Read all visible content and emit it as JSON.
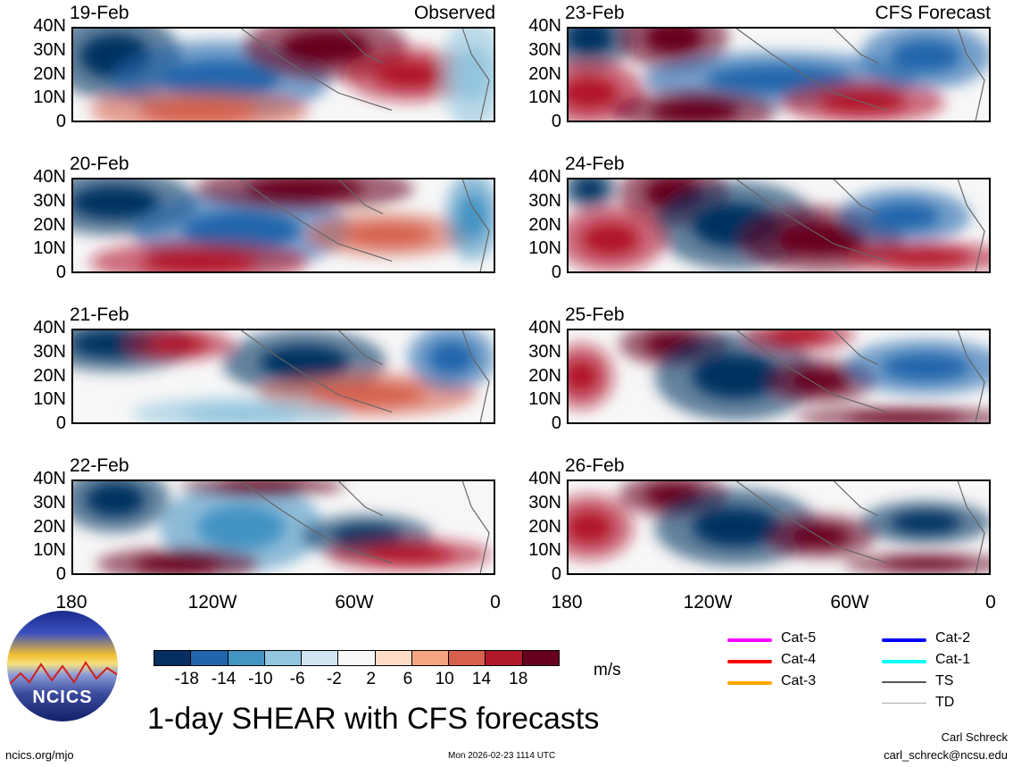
{
  "panels": [
    {
      "date": "19-Feb",
      "title": "Observed"
    },
    {
      "date": "20-Feb"
    },
    {
      "date": "21-Feb"
    },
    {
      "date": "22-Feb"
    },
    {
      "date": "23-Feb",
      "title": "CFS Forecast"
    },
    {
      "date": "24-Feb"
    },
    {
      "date": "25-Feb"
    },
    {
      "date": "26-Feb"
    }
  ],
  "chart_data": {
    "type": "heatmap",
    "title": "1-day SHEAR with CFS forecasts",
    "ylabels": [
      "40N",
      "30N",
      "20N",
      "10N",
      "0"
    ],
    "xlabels": [
      "180",
      "120W",
      "60W",
      "0"
    ],
    "units": "m/s",
    "colorbar": {
      "ticks": [
        "-18",
        "-14",
        "-10",
        "-6",
        "-2",
        "2",
        "6",
        "10",
        "14",
        "18"
      ],
      "colors": [
        "#053061",
        "#2166ac",
        "#4393c3",
        "#92c5de",
        "#d1e5f0",
        "#f7f7f7",
        "#fddbc7",
        "#f4a582",
        "#d6604d",
        "#b2182b",
        "#67001f"
      ]
    }
  },
  "legend": [
    {
      "label": "Cat-5",
      "color": "#ff00ff"
    },
    {
      "label": "Cat-4",
      "color": "#ff0000"
    },
    {
      "label": "Cat-3",
      "color": "#ffa500"
    },
    {
      "label": "Cat-2",
      "color": "#0000ff"
    },
    {
      "label": "Cat-1",
      "color": "#00ffff"
    },
    {
      "label": "TS",
      "color": "#555555"
    },
    {
      "label": "TD",
      "color": "#aaaaaa"
    }
  ],
  "logo_text": "NCICS",
  "footer": {
    "url": "ncics.org/mjo",
    "timestamp": "Mon 2026-02-23 1114 UTC",
    "author": "Carl Schreck",
    "email": "carl_schreck@ncsu.edu"
  }
}
